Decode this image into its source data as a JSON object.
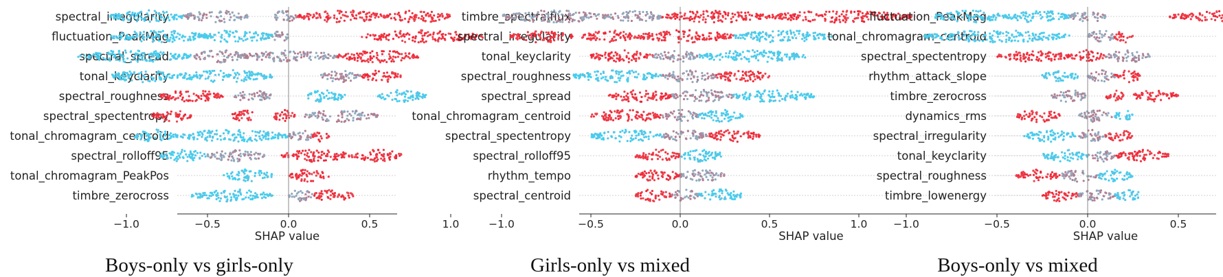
{
  "chart_data": [
    {
      "type": "scatter",
      "subtype": "shap-beeswarm",
      "caption": "Boys-only vs girls-only",
      "xlabel": "SHAP value",
      "xlim": [
        -1.4,
        1.35
      ],
      "xticks": [
        -1.0,
        -0.5,
        0.0,
        0.5,
        1.0
      ],
      "xtick_labels": [
        "−1.0",
        "−0.5",
        "0.0",
        "0.5",
        "1.0"
      ],
      "grid": "horizontal dashed per feature",
      "color_scale": {
        "low": "#3cd2f5",
        "mid": "#9aa4b8",
        "high": "#ee2233"
      },
      "features": [
        {
          "name": "spectral_irregularity",
          "clusters": [
            [
              -1.1,
              -0.65,
              "low"
            ],
            [
              -0.65,
              -0.25,
              "mid"
            ],
            [
              -0.1,
              0.05,
              "mid"
            ],
            [
              0.05,
              0.6,
              "high"
            ],
            [
              0.6,
              1.0,
              "high"
            ]
          ]
        },
        {
          "name": "fluctuation_PeakMag",
          "clusters": [
            [
              -1.1,
              -0.5,
              "low"
            ],
            [
              -0.55,
              -0.1,
              "low"
            ],
            [
              -0.1,
              0.0,
              "mid"
            ],
            [
              0.45,
              1.2,
              "high"
            ]
          ]
        },
        {
          "name": "spectral_spread",
          "clusters": [
            [
              -1.3,
              -0.6,
              "low"
            ],
            [
              -0.6,
              -0.25,
              "mid"
            ],
            [
              -0.3,
              0.3,
              "mid"
            ],
            [
              0.3,
              0.8,
              "high"
            ]
          ]
        },
        {
          "name": "tonal_keyclarity",
          "clusters": [
            [
              -1.1,
              -0.7,
              "low"
            ],
            [
              -0.7,
              -0.1,
              "low"
            ],
            [
              0.2,
              0.45,
              "mid"
            ],
            [
              0.45,
              0.7,
              "high"
            ]
          ]
        },
        {
          "name": "spectral_roughness",
          "clusters": [
            [
              -0.8,
              -0.4,
              "high"
            ],
            [
              -0.35,
              -0.1,
              "mid"
            ],
            [
              0.1,
              0.35,
              "low"
            ],
            [
              0.55,
              0.85,
              "low"
            ]
          ]
        },
        {
          "name": "spectral_spectentropy",
          "clusters": [
            [
              -0.85,
              -0.6,
              "high"
            ],
            [
              -0.35,
              -0.2,
              "high"
            ],
            [
              -0.1,
              0.05,
              "high"
            ],
            [
              0.1,
              0.55,
              "mid"
            ]
          ]
        },
        {
          "name": "tonal_chromagram_centroid",
          "clusters": [
            [
              -0.95,
              -0.7,
              "low"
            ],
            [
              -0.7,
              0.0,
              "low"
            ],
            [
              0.0,
              0.15,
              "mid"
            ],
            [
              0.15,
              0.25,
              "high"
            ]
          ]
        },
        {
          "name": "spectral_rolloff95",
          "clusters": [
            [
              -0.8,
              -0.5,
              "low"
            ],
            [
              -0.5,
              -0.15,
              "mid"
            ],
            [
              -0.05,
              0.4,
              "high"
            ],
            [
              0.4,
              0.7,
              "high"
            ]
          ]
        },
        {
          "name": "tonal_chromagram_PeakPos",
          "clusters": [
            [
              -0.4,
              -0.1,
              "low"
            ],
            [
              0.0,
              0.25,
              "high"
            ]
          ]
        },
        {
          "name": "timbre_zerocross",
          "clusters": [
            [
              -0.6,
              -0.1,
              "low"
            ],
            [
              0.0,
              0.15,
              "mid"
            ],
            [
              0.15,
              0.4,
              "high"
            ]
          ]
        }
      ]
    },
    {
      "type": "scatter",
      "subtype": "shap-beeswarm",
      "caption": "Girls-only vs mixed",
      "xlabel": "SHAP value",
      "xlim": [
        -1.08,
        1.33
      ],
      "xticks": [
        -1.0,
        -0.5,
        0.0,
        0.5,
        1.0
      ],
      "xtick_labels": [
        "−1.0",
        "−0.5",
        "0.0",
        "0.5",
        "1.0"
      ],
      "grid": "horizontal dashed per feature",
      "color_scale": {
        "low": "#3cd2f5",
        "mid": "#9aa4b8",
        "high": "#ee2233"
      },
      "features": [
        {
          "name": "timbre_spectralflux",
          "clusters": [
            [
              -1.0,
              -0.4,
              "mid"
            ],
            [
              -0.4,
              -0.1,
              "mid"
            ],
            [
              -0.1,
              0.5,
              "high"
            ],
            [
              0.5,
              1.3,
              "high"
            ]
          ]
        },
        {
          "name": "spectral_irregularity",
          "clusters": [
            [
              -0.95,
              -0.6,
              "high"
            ],
            [
              -0.55,
              -0.25,
              "high"
            ],
            [
              -0.25,
              0.3,
              "high"
            ],
            [
              0.3,
              0.85,
              "low"
            ]
          ]
        },
        {
          "name": "tonal_keyclarity",
          "clusters": [
            [
              -0.5,
              -0.15,
              "high"
            ],
            [
              -0.15,
              0.1,
              "mid"
            ],
            [
              0.1,
              0.7,
              "low"
            ]
          ]
        },
        {
          "name": "spectral_roughness",
          "clusters": [
            [
              -0.6,
              -0.1,
              "low"
            ],
            [
              -0.1,
              0.2,
              "mid"
            ],
            [
              0.2,
              0.5,
              "high"
            ]
          ]
        },
        {
          "name": "spectral_spread",
          "clusters": [
            [
              -0.4,
              -0.05,
              "high"
            ],
            [
              -0.05,
              0.3,
              "mid"
            ],
            [
              0.3,
              0.75,
              "low"
            ]
          ]
        },
        {
          "name": "tonal_chromagram_centroid",
          "clusters": [
            [
              -0.5,
              -0.1,
              "high"
            ],
            [
              -0.1,
              0.1,
              "mid"
            ],
            [
              0.1,
              0.35,
              "low"
            ]
          ]
        },
        {
          "name": "spectral_spectentropy",
          "clusters": [
            [
              -0.5,
              -0.1,
              "low"
            ],
            [
              -0.1,
              0.15,
              "mid"
            ],
            [
              0.15,
              0.45,
              "high"
            ]
          ]
        },
        {
          "name": "spectral_rolloff95",
          "clusters": [
            [
              -0.25,
              0.0,
              "high"
            ],
            [
              0.0,
              0.25,
              "low"
            ]
          ]
        },
        {
          "name": "rhythm_tempo",
          "clusters": [
            [
              -0.25,
              0.0,
              "high"
            ],
            [
              0.0,
              0.25,
              "mid"
            ]
          ]
        },
        {
          "name": "spectral_centroid",
          "clusters": [
            [
              -0.25,
              -0.05,
              "high"
            ],
            [
              -0.05,
              0.1,
              "mid"
            ],
            [
              0.1,
              0.35,
              "low"
            ]
          ]
        }
      ]
    },
    {
      "type": "scatter",
      "subtype": "shap-beeswarm",
      "caption": "Boys-only vs mixed",
      "xlabel": "SHAP value",
      "xlim": [
        -1.05,
        1.35
      ],
      "xticks": [
        -1.0,
        -0.5,
        0.0,
        0.5,
        1.0
      ],
      "xtick_labels": [
        "−1.0",
        "−0.5",
        "0.0",
        "0.5",
        "1.0"
      ],
      "grid": "horizontal dashed per feature",
      "color_scale": {
        "low": "#3cd2f5",
        "mid": "#9aa4b8",
        "high": "#ee2233"
      },
      "features": [
        {
          "name": "fluctuation_PeakMag",
          "clusters": [
            [
              -0.85,
              -0.45,
              "low"
            ],
            [
              -0.45,
              -0.1,
              "low"
            ],
            [
              -0.1,
              0.1,
              "mid"
            ],
            [
              0.45,
              1.3,
              "high"
            ]
          ]
        },
        {
          "name": "tonal_chromagram_centroid",
          "clusters": [
            [
              -0.9,
              -0.1,
              "low"
            ],
            [
              0.0,
              0.15,
              "mid"
            ],
            [
              0.15,
              0.25,
              "high"
            ]
          ]
        },
        {
          "name": "spectral_spectentropy",
          "clusters": [
            [
              -0.5,
              -0.1,
              "high"
            ],
            [
              -0.1,
              0.1,
              "high"
            ],
            [
              0.1,
              0.35,
              "mid"
            ]
          ]
        },
        {
          "name": "rhythm_attack_slope",
          "clusters": [
            [
              -0.25,
              -0.05,
              "low"
            ],
            [
              0.0,
              0.15,
              "mid"
            ],
            [
              0.15,
              0.3,
              "high"
            ]
          ]
        },
        {
          "name": "timbre_zerocross",
          "clusters": [
            [
              -0.2,
              0.0,
              "mid"
            ],
            [
              0.1,
              0.2,
              "high"
            ],
            [
              0.25,
              0.5,
              "high"
            ]
          ]
        },
        {
          "name": "dynamics_rms",
          "clusters": [
            [
              -0.4,
              -0.15,
              "high"
            ],
            [
              -0.05,
              0.15,
              "mid"
            ],
            [
              0.15,
              0.25,
              "low"
            ]
          ]
        },
        {
          "name": "spectral_irregularity",
          "clusters": [
            [
              -0.35,
              -0.05,
              "low"
            ],
            [
              -0.05,
              0.1,
              "mid"
            ],
            [
              0.1,
              0.25,
              "high"
            ]
          ]
        },
        {
          "name": "tonal_keyclarity",
          "clusters": [
            [
              -0.25,
              0.0,
              "low"
            ],
            [
              0.0,
              0.15,
              "mid"
            ],
            [
              0.15,
              0.45,
              "high"
            ]
          ]
        },
        {
          "name": "spectral_roughness",
          "clusters": [
            [
              -0.4,
              -0.15,
              "high"
            ],
            [
              -0.15,
              0.05,
              "mid"
            ],
            [
              0.05,
              0.25,
              "low"
            ]
          ]
        },
        {
          "name": "timbre_lowenergy",
          "clusters": [
            [
              -0.25,
              -0.05,
              "high"
            ],
            [
              -0.05,
              0.15,
              "mid"
            ],
            [
              0.15,
              0.3,
              "low"
            ]
          ]
        }
      ]
    }
  ]
}
